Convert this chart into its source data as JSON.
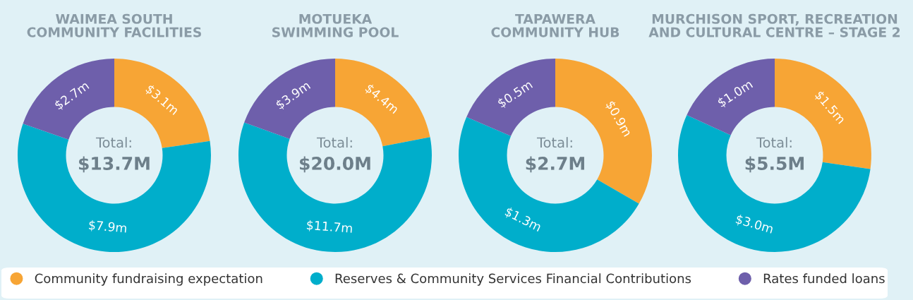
{
  "chart_data": [
    {
      "type": "donut",
      "title": "WAIMEA SOUTH\nCOMMUNITY FACILITIES",
      "categories": [
        "Community fundraising expectation",
        "Reserves & Community Services Financial Contributions",
        "Rates funded loans"
      ],
      "values": [
        3.1,
        7.9,
        2.7
      ],
      "value_labels": [
        "$3.1m",
        "$7.9m",
        "$2.7m"
      ],
      "colors": [
        "#f7a535",
        "#00aecb",
        "#6e5fab"
      ],
      "annotations": [
        "Total:",
        "$13.7M"
      ],
      "legend": "bottom"
    },
    {
      "type": "donut",
      "title": "MOTUEKA\nSWIMMING POOL",
      "categories": [
        null,
        null,
        null
      ],
      "values": [
        4.4,
        11.7,
        3.9
      ],
      "value_labels": [
        "$4.4m",
        "$11.7m",
        "$3.9m"
      ],
      "colors": [
        "#f7a535",
        "#00aecb",
        "#6e5fab"
      ],
      "annotations": [
        "Total:",
        "$20.0M"
      ]
    },
    {
      "type": "donut",
      "title": "TAPAWERA\nCOMMUNITY HUB",
      "categories": [
        null,
        null,
        null
      ],
      "values": [
        0.9,
        1.3,
        0.5
      ],
      "value_labels": [
        "$0.9m",
        "$1.3m",
        "$0.5m"
      ],
      "colors": [
        "#f7a535",
        "#00aecb",
        "#6e5fab"
      ],
      "annotations": [
        "Total:",
        "$2.7M"
      ]
    },
    {
      "type": "donut",
      "title": "MURCHISON SPORT, RECREATION\nAND CULTURAL CENTRE – STAGE 2",
      "categories": [
        null,
        null,
        null
      ],
      "values": [
        1.5,
        3.0,
        1.0
      ],
      "value_labels": [
        "$1.5m",
        "$3.0m",
        "$1.0m"
      ],
      "colors": [
        "#f7a535",
        "#00aecb",
        "#6e5fab"
      ],
      "annotations": [
        "Total:",
        "$5.5M"
      ]
    }
  ]
}
